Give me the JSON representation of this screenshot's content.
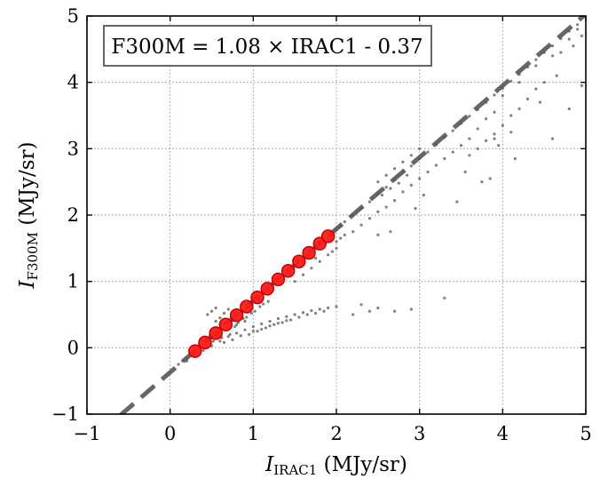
{
  "chart_data": {
    "type": "scatter",
    "title": "",
    "xlabel": {
      "main": "I",
      "sub": "IRAC1",
      "unit": " (MJy/sr)"
    },
    "ylabel": {
      "main": "I",
      "sub": "F300M",
      "unit": " (MJy/sr)"
    },
    "xlim": [
      -1,
      5
    ],
    "ylim": [
      -1,
      5
    ],
    "xticks": [
      -1,
      0,
      1,
      2,
      3,
      4,
      5
    ],
    "yticks": [
      -1,
      0,
      1,
      2,
      3,
      4,
      5
    ],
    "xtick_labels": [
      "−1",
      "0",
      "1",
      "2",
      "3",
      "4",
      "5"
    ],
    "ytick_labels": [
      "−1",
      "0",
      "1",
      "2",
      "3",
      "4",
      "5"
    ],
    "grid": true,
    "annotation": "F300M = 1.08 × IRAC1 - 0.37",
    "fit": {
      "slope": 1.08,
      "intercept": -0.37,
      "x_range": [
        -0.6,
        5
      ]
    },
    "binned_points": {
      "x": [
        0.3,
        0.42,
        0.55,
        0.67,
        0.8,
        0.92,
        1.05,
        1.17,
        1.3,
        1.42,
        1.55,
        1.67,
        1.8,
        1.9
      ],
      "y": [
        -0.05,
        0.08,
        0.22,
        0.35,
        0.49,
        0.62,
        0.76,
        0.89,
        1.03,
        1.16,
        1.3,
        1.43,
        1.57,
        1.68
      ]
    },
    "scatter_background": [
      [
        0.1,
        -0.25
      ],
      [
        0.15,
        -0.2
      ],
      [
        0.2,
        -0.15
      ],
      [
        0.25,
        -0.1
      ],
      [
        0.3,
        -0.05
      ],
      [
        0.35,
        0.0
      ],
      [
        0.4,
        0.05
      ],
      [
        0.45,
        0.1
      ],
      [
        0.5,
        0.15
      ],
      [
        0.55,
        0.2
      ],
      [
        0.6,
        0.25
      ],
      [
        0.65,
        0.3
      ],
      [
        0.7,
        0.36
      ],
      [
        0.75,
        0.41
      ],
      [
        0.8,
        0.47
      ],
      [
        0.85,
        0.52
      ],
      [
        0.9,
        0.58
      ],
      [
        0.95,
        0.63
      ],
      [
        1.0,
        0.69
      ],
      [
        1.05,
        0.74
      ],
      [
        1.1,
        0.8
      ],
      [
        1.15,
        0.85
      ],
      [
        1.2,
        0.9
      ],
      [
        1.25,
        0.96
      ],
      [
        1.3,
        1.01
      ],
      [
        1.35,
        1.07
      ],
      [
        1.4,
        1.12
      ],
      [
        1.45,
        1.18
      ],
      [
        1.5,
        1.23
      ],
      [
        1.55,
        1.29
      ],
      [
        1.6,
        1.34
      ],
      [
        1.65,
        1.4
      ],
      [
        1.7,
        1.45
      ],
      [
        1.75,
        1.5
      ],
      [
        1.8,
        1.56
      ],
      [
        1.85,
        1.61
      ],
      [
        1.9,
        1.67
      ],
      [
        1.95,
        1.72
      ],
      [
        2.0,
        1.78
      ],
      [
        2.05,
        1.83
      ],
      [
        2.1,
        1.9
      ],
      [
        2.2,
        2.0
      ],
      [
        2.3,
        2.1
      ],
      [
        2.4,
        2.2
      ],
      [
        2.5,
        2.32
      ],
      [
        2.6,
        2.42
      ],
      [
        2.7,
        2.53
      ],
      [
        2.8,
        2.64
      ],
      [
        2.9,
        2.74
      ],
      [
        3.0,
        2.85
      ],
      [
        3.1,
        2.95
      ],
      [
        3.2,
        3.06
      ],
      [
        3.3,
        3.17
      ],
      [
        3.4,
        3.27
      ],
      [
        3.5,
        3.38
      ],
      [
        3.6,
        3.49
      ],
      [
        3.7,
        3.59
      ],
      [
        3.8,
        3.7
      ],
      [
        3.9,
        3.81
      ],
      [
        4.0,
        3.91
      ],
      [
        4.1,
        4.02
      ],
      [
        4.2,
        4.12
      ],
      [
        4.3,
        4.23
      ],
      [
        4.4,
        4.34
      ],
      [
        4.5,
        4.45
      ],
      [
        4.6,
        4.55
      ],
      [
        4.7,
        4.66
      ],
      [
        4.8,
        4.77
      ],
      [
        4.9,
        4.87
      ],
      [
        0.2,
        -0.2
      ],
      [
        0.3,
        -0.12
      ],
      [
        0.4,
        -0.04
      ],
      [
        0.5,
        0.03
      ],
      [
        0.6,
        0.1
      ],
      [
        0.7,
        0.17
      ],
      [
        0.8,
        0.22
      ],
      [
        0.9,
        0.27
      ],
      [
        1.0,
        0.32
      ],
      [
        1.1,
        0.36
      ],
      [
        1.2,
        0.4
      ],
      [
        1.3,
        0.44
      ],
      [
        1.4,
        0.47
      ],
      [
        1.5,
        0.5
      ],
      [
        1.6,
        0.53
      ],
      [
        1.7,
        0.56
      ],
      [
        1.8,
        0.58
      ],
      [
        1.9,
        0.6
      ],
      [
        2.0,
        0.62
      ],
      [
        0.45,
        0.5
      ],
      [
        0.5,
        0.55
      ],
      [
        0.55,
        0.6
      ],
      [
        0.6,
        0.45
      ],
      [
        0.65,
        0.52
      ],
      [
        0.7,
        0.58
      ],
      [
        0.55,
        0.4
      ],
      [
        0.6,
        0.35
      ],
      [
        0.8,
        0.35
      ],
      [
        0.9,
        0.4
      ],
      [
        1.05,
        0.25
      ],
      [
        1.15,
        0.3
      ],
      [
        1.25,
        0.35
      ],
      [
        1.35,
        0.38
      ],
      [
        1.45,
        0.42
      ],
      [
        1.55,
        0.46
      ],
      [
        1.65,
        0.5
      ],
      [
        1.75,
        0.52
      ],
      [
        1.85,
        0.55
      ],
      [
        2.0,
        1.6
      ],
      [
        2.1,
        1.7
      ],
      [
        2.2,
        1.75
      ],
      [
        2.3,
        1.85
      ],
      [
        2.4,
        1.95
      ],
      [
        2.5,
        2.05
      ],
      [
        2.6,
        2.12
      ],
      [
        2.7,
        2.22
      ],
      [
        2.8,
        2.35
      ],
      [
        2.9,
        2.45
      ],
      [
        3.0,
        2.55
      ],
      [
        3.1,
        2.65
      ],
      [
        3.2,
        2.75
      ],
      [
        3.3,
        2.85
      ],
      [
        3.4,
        2.95
      ],
      [
        3.5,
        3.05
      ],
      [
        3.6,
        3.15
      ],
      [
        3.7,
        3.3
      ],
      [
        3.8,
        3.45
      ],
      [
        3.9,
        3.55
      ],
      [
        2.5,
        2.5
      ],
      [
        2.6,
        2.6
      ],
      [
        2.7,
        2.7
      ],
      [
        2.8,
        2.8
      ],
      [
        2.9,
        2.9
      ],
      [
        3.0,
        3.0
      ],
      [
        2.55,
        2.3
      ],
      [
        2.65,
        2.4
      ],
      [
        2.75,
        2.48
      ],
      [
        2.85,
        2.6
      ],
      [
        4.0,
        3.8
      ],
      [
        4.2,
        4.0
      ],
      [
        4.4,
        4.25
      ],
      [
        4.6,
        4.4
      ],
      [
        4.8,
        4.65
      ],
      [
        4.9,
        4.8
      ],
      [
        4.95,
        4.7
      ],
      [
        4.85,
        4.55
      ],
      [
        4.7,
        4.45
      ],
      [
        4.95,
        3.95
      ],
      [
        4.6,
        3.15
      ],
      [
        4.8,
        3.6
      ],
      [
        3.9,
        3.15
      ],
      [
        3.95,
        3.05
      ],
      [
        4.1,
        3.25
      ],
      [
        4.15,
        2.85
      ],
      [
        3.85,
        2.55
      ],
      [
        3.75,
        2.5
      ],
      [
        3.45,
        2.2
      ],
      [
        2.65,
        1.75
      ],
      [
        2.5,
        1.7
      ],
      [
        3.55,
        2.65
      ],
      [
        4.45,
        3.7
      ],
      [
        4.65,
        4.1
      ],
      [
        3.05,
        2.3
      ],
      [
        2.95,
        2.1
      ],
      [
        3.3,
        0.75
      ],
      [
        2.9,
        0.58
      ],
      [
        2.7,
        0.55
      ],
      [
        2.5,
        0.6
      ],
      [
        2.3,
        0.65
      ],
      [
        2.2,
        0.5
      ],
      [
        2.4,
        0.55
      ],
      [
        0.35,
        0.05
      ],
      [
        0.38,
        0.12
      ],
      [
        0.42,
        0.02
      ],
      [
        0.48,
        0.18
      ],
      [
        0.52,
        0.1
      ],
      [
        0.58,
        0.22
      ],
      [
        0.62,
        0.15
      ],
      [
        0.68,
        0.28
      ],
      [
        0.72,
        0.2
      ],
      [
        0.78,
        0.32
      ],
      [
        0.82,
        0.38
      ],
      [
        0.88,
        0.44
      ],
      [
        0.92,
        0.46
      ],
      [
        0.98,
        0.52
      ],
      [
        1.02,
        0.55
      ],
      [
        1.08,
        0.62
      ],
      [
        1.12,
        0.66
      ],
      [
        1.18,
        0.7
      ],
      [
        0.95,
        0.2
      ],
      [
        1.0,
        0.25
      ],
      [
        1.1,
        0.28
      ],
      [
        1.2,
        0.33
      ],
      [
        1.3,
        0.37
      ],
      [
        1.4,
        0.41
      ],
      [
        0.85,
        0.18
      ],
      [
        0.75,
        0.12
      ],
      [
        0.65,
        0.08
      ],
      [
        1.5,
        1.0
      ],
      [
        1.6,
        1.1
      ],
      [
        1.7,
        1.2
      ],
      [
        1.8,
        1.3
      ],
      [
        1.9,
        1.4
      ],
      [
        2.0,
        1.5
      ],
      [
        1.75,
        1.35
      ],
      [
        1.95,
        1.45
      ],
      [
        2.05,
        1.65
      ],
      [
        3.6,
        2.9
      ],
      [
        3.7,
        3.0
      ],
      [
        3.8,
        3.12
      ],
      [
        3.9,
        3.22
      ],
      [
        4.0,
        3.35
      ],
      [
        4.1,
        3.5
      ],
      [
        4.2,
        3.6
      ],
      [
        4.3,
        3.75
      ],
      [
        4.4,
        3.9
      ],
      [
        4.5,
        4.0
      ]
    ]
  }
}
